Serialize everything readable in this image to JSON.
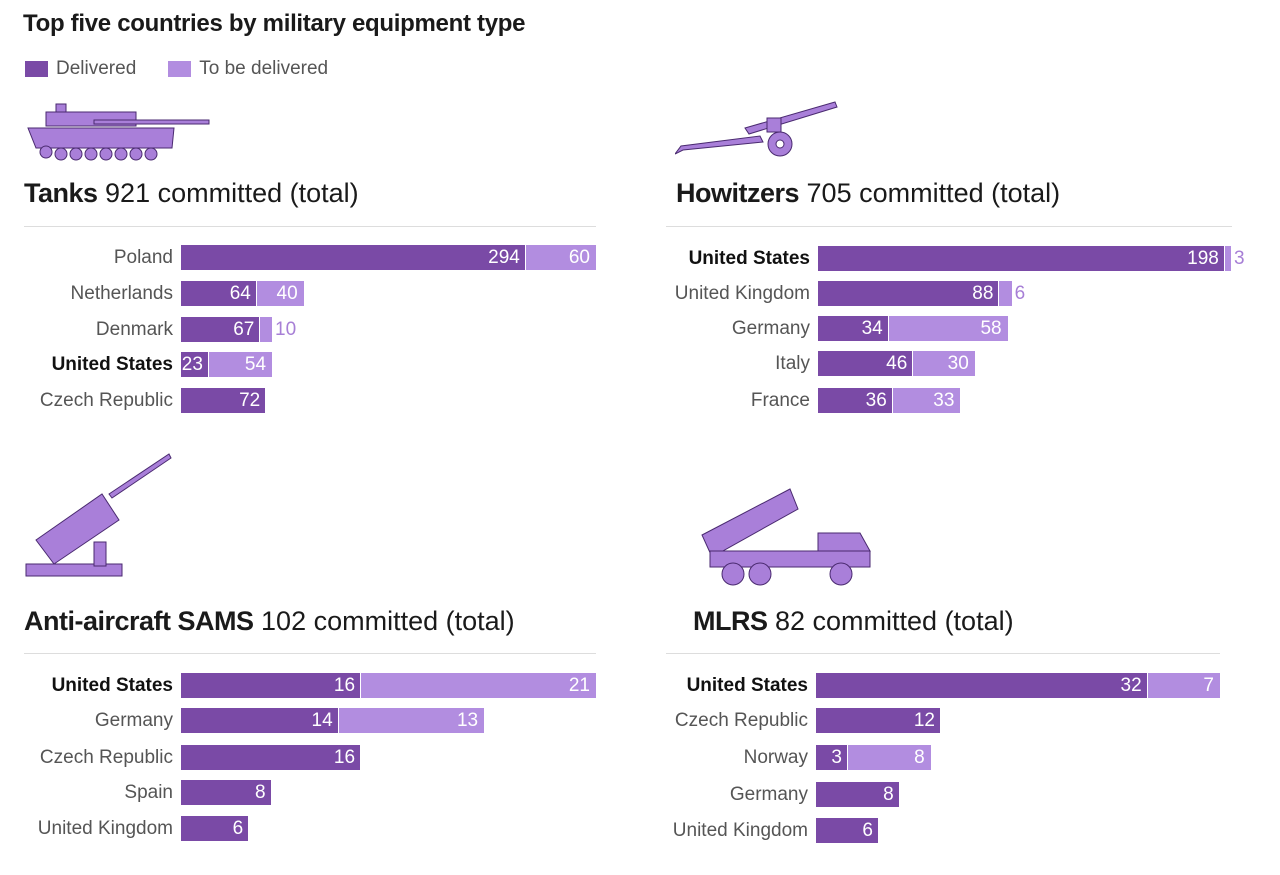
{
  "title": "Top five countries by military equipment type",
  "legend": {
    "delivered": "Delivered",
    "to_be_delivered": "To be delivered"
  },
  "colors": {
    "delivered": "#7a4aa6",
    "to_be_delivered": "#b28de0",
    "icon": "#a97fd9",
    "outside_label": "#a77fd6"
  },
  "chart_data": [
    {
      "type": "bar",
      "stacked": true,
      "orientation": "horizontal",
      "title": "Tanks",
      "subtitle": "921 committed (total)",
      "icon": "tank-icon",
      "categories": [
        "Poland",
        "Netherlands",
        "Denmark",
        "United States",
        "Czech Republic"
      ],
      "highlight": "United States",
      "series": [
        {
          "name": "Delivered",
          "values": [
            294,
            64,
            67,
            23,
            72
          ]
        },
        {
          "name": "To be delivered",
          "values": [
            60,
            40,
            10,
            54,
            0
          ]
        }
      ]
    },
    {
      "type": "bar",
      "stacked": true,
      "orientation": "horizontal",
      "title": "Howitzers",
      "subtitle": "705 committed (total)",
      "icon": "howitzer-icon",
      "categories": [
        "United States",
        "United Kingdom",
        "Germany",
        "Italy",
        "France"
      ],
      "highlight": "United States",
      "series": [
        {
          "name": "Delivered",
          "values": [
            198,
            88,
            34,
            46,
            36
          ]
        },
        {
          "name": "To be delivered",
          "values": [
            3,
            6,
            58,
            30,
            33
          ]
        }
      ]
    },
    {
      "type": "bar",
      "stacked": true,
      "orientation": "horizontal",
      "title": "Anti-aircraft SAMS",
      "subtitle": "102 committed (total)",
      "icon": "missile-launcher-icon",
      "categories": [
        "United States",
        "Germany",
        "Czech Republic",
        "Spain",
        "United Kingdom"
      ],
      "highlight": "United States",
      "series": [
        {
          "name": "Delivered",
          "values": [
            16,
            14,
            16,
            8,
            6
          ]
        },
        {
          "name": "To be delivered",
          "values": [
            21,
            13,
            0,
            0,
            0
          ]
        }
      ]
    },
    {
      "type": "bar",
      "stacked": true,
      "orientation": "horizontal",
      "title": "MLRS",
      "subtitle": "82 committed (total)",
      "icon": "rocket-truck-icon",
      "categories": [
        "United States",
        "Czech Republic",
        "Norway",
        "Germany",
        "United Kingdom"
      ],
      "highlight": "United States",
      "series": [
        {
          "name": "Delivered",
          "values": [
            32,
            12,
            3,
            8,
            6
          ]
        },
        {
          "name": "To be delivered",
          "values": [
            7,
            0,
            8,
            0,
            0
          ]
        }
      ]
    }
  ]
}
